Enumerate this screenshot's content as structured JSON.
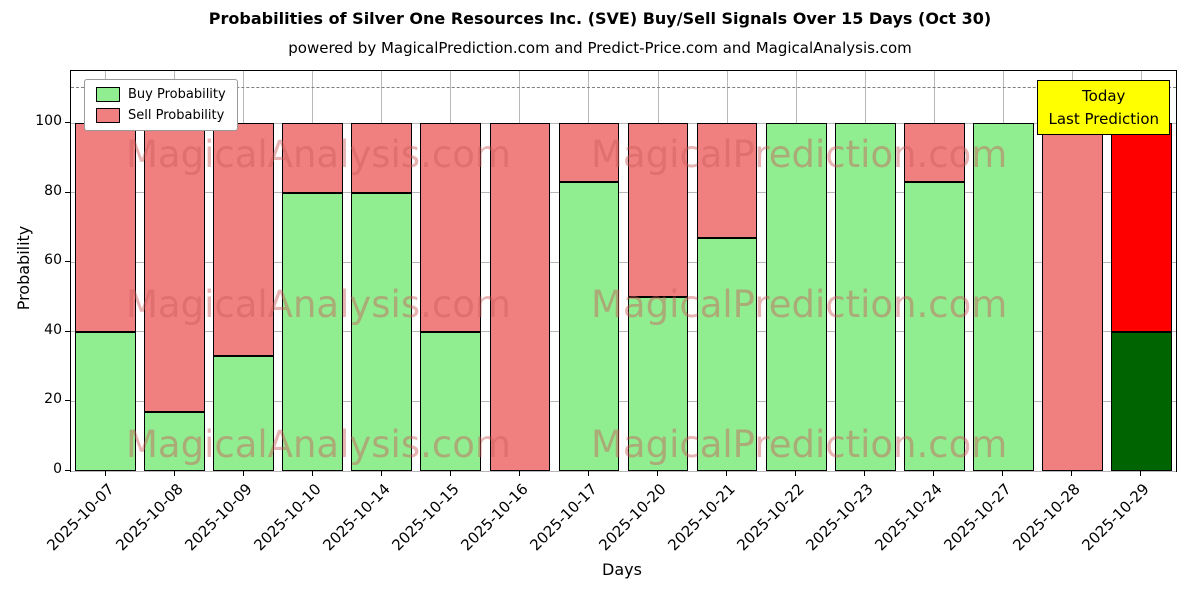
{
  "title": "Probabilities of Silver One Resources Inc. (SVE) Buy/Sell Signals Over 15 Days (Oct 30)",
  "subtitle": "powered by MagicalPrediction.com and Predict-Price.com and MagicalAnalysis.com",
  "legend": {
    "items": [
      {
        "label": "Buy Probability",
        "color": "#90ee90"
      },
      {
        "label": "Sell Probability",
        "color": "#f08080"
      }
    ]
  },
  "annotation_box": {
    "lines": [
      "Today",
      "Last Prediction"
    ],
    "bg": "#ffff00"
  },
  "watermarks": {
    "texts": [
      "MagicalAnalysis.com",
      "MagicalPrediction.com"
    ],
    "color": "#cd5c5c",
    "opacity": 0.45
  },
  "chart_data": {
    "type": "bar",
    "stacked": true,
    "title": "Probabilities of Silver One Resources Inc. (SVE) Buy/Sell Signals Over 15 Days (Oct 30)",
    "xlabel": "Days",
    "ylabel": "Probability",
    "categories": [
      "2025-10-07",
      "2025-10-08",
      "2025-10-09",
      "2025-10-10",
      "2025-10-14",
      "2025-10-15",
      "2025-10-16",
      "2025-10-17",
      "2025-10-20",
      "2025-10-21",
      "2025-10-22",
      "2025-10-23",
      "2025-10-24",
      "2025-10-27",
      "2025-10-28",
      "2025-10-29"
    ],
    "series": [
      {
        "name": "Buy Probability",
        "color": "#90ee90",
        "values": [
          40,
          17,
          33,
          80,
          80,
          40,
          0,
          83,
          50,
          67,
          100,
          100,
          83,
          100,
          0,
          40
        ]
      },
      {
        "name": "Sell Probability",
        "color": "#f08080",
        "values": [
          60,
          83,
          67,
          20,
          20,
          60,
          100,
          17,
          50,
          33,
          0,
          0,
          17,
          0,
          100,
          60
        ]
      }
    ],
    "last_bar_colors": {
      "buy": "#006400",
      "sell": "#ff0000"
    },
    "yticks": [
      0,
      20,
      40,
      60,
      80,
      100
    ],
    "ylim": [
      0,
      115
    ],
    "dashed_line_y": 110,
    "grid": true,
    "legend_position": "upper-left"
  }
}
